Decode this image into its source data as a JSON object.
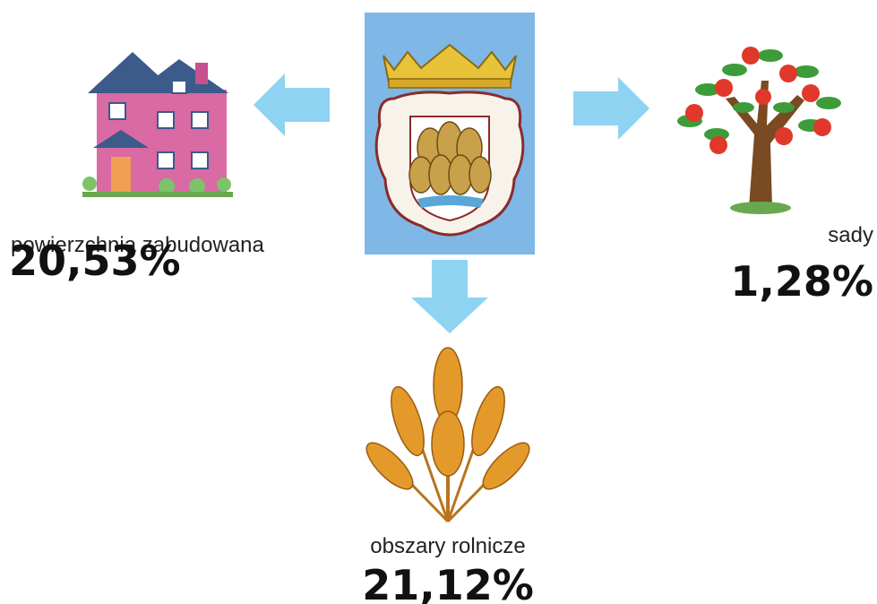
{
  "items": [
    {
      "label": "powierzchnia zabudowana",
      "value": "20,53%"
    },
    {
      "label": "sady",
      "value": "1,28%"
    },
    {
      "label": "obszary rolnicze",
      "value": "21,12%"
    }
  ]
}
